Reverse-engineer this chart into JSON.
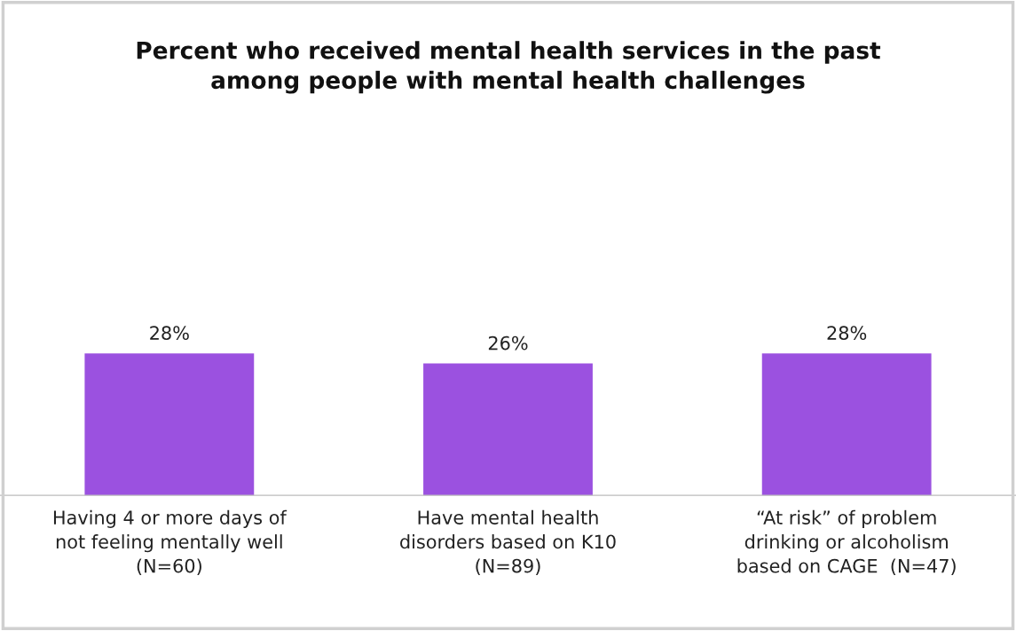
{
  "chart_data": {
    "type": "bar",
    "title": "Percent who received mental health services in the past\namong people with mental health challenges",
    "categories": [
      "Having 4 or more days of\nnot feeling mentally well\n(N=60)",
      "Have mental health\ndisorders based on K10\n(N=89)",
      "“At risk” of problem\ndrinking or alcoholism\nbased on CAGE  (N=47)"
    ],
    "values": [
      28,
      26,
      28
    ],
    "value_labels": [
      "28%",
      "26%",
      "28%"
    ],
    "color": "#9b51e0"
  }
}
